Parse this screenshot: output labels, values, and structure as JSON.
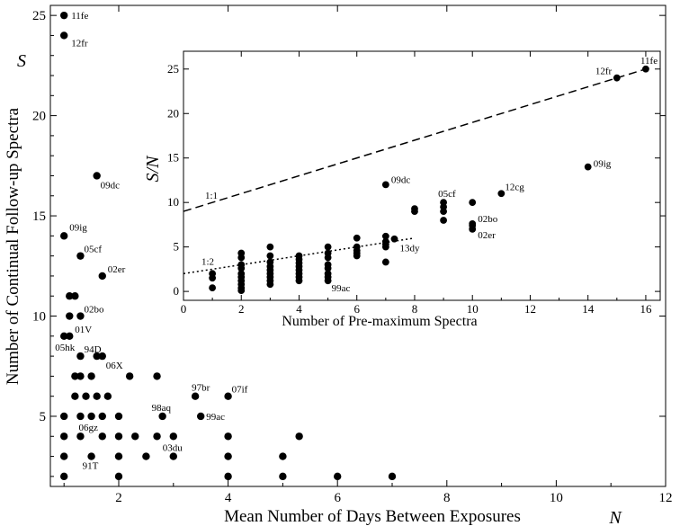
{
  "chart_data": [
    {
      "type": "scatter",
      "xlabel": "Mean Number of Days Between Exposures",
      "ylabel": "Number of Continual Follow-up Spectra",
      "xlim": [
        0.75,
        12
      ],
      "ylim": [
        1.5,
        25.5
      ],
      "xticks": [
        2,
        4,
        6,
        8,
        10,
        12
      ],
      "yticks": [
        5,
        10,
        15,
        20,
        25
      ],
      "axis_symbols": {
        "y": "S",
        "x": "N"
      },
      "points": [
        {
          "x": 1.0,
          "y": 25,
          "label": "11fe"
        },
        {
          "x": 1.0,
          "y": 24,
          "label": "12fr"
        },
        {
          "x": 1.6,
          "y": 17,
          "label": "09dc"
        },
        {
          "x": 1.0,
          "y": 14,
          "label": "09ig"
        },
        {
          "x": 1.3,
          "y": 13,
          "label": "05cf"
        },
        {
          "x": 1.7,
          "y": 12,
          "label": "02er"
        },
        {
          "x": 1.1,
          "y": 11,
          "label": ""
        },
        {
          "x": 1.2,
          "y": 11,
          "label": ""
        },
        {
          "x": 1.1,
          "y": 10,
          "label": ""
        },
        {
          "x": 1.3,
          "y": 10,
          "label": "02bo"
        },
        {
          "x": 1.0,
          "y": 9,
          "label": "05hk"
        },
        {
          "x": 1.1,
          "y": 9,
          "label": "01V"
        },
        {
          "x": 1.3,
          "y": 8,
          "label": ""
        },
        {
          "x": 1.6,
          "y": 8,
          "label": "94D"
        },
        {
          "x": 1.7,
          "y": 8,
          "label": "06X"
        },
        {
          "x": 1.2,
          "y": 7,
          "label": ""
        },
        {
          "x": 1.3,
          "y": 7,
          "label": ""
        },
        {
          "x": 1.5,
          "y": 7,
          "label": ""
        },
        {
          "x": 2.2,
          "y": 7,
          "label": ""
        },
        {
          "x": 2.7,
          "y": 7,
          "label": ""
        },
        {
          "x": 1.2,
          "y": 6,
          "label": ""
        },
        {
          "x": 1.4,
          "y": 6,
          "label": ""
        },
        {
          "x": 1.6,
          "y": 6,
          "label": ""
        },
        {
          "x": 1.8,
          "y": 6,
          "label": ""
        },
        {
          "x": 3.4,
          "y": 6,
          "label": "97br"
        },
        {
          "x": 4.0,
          "y": 6,
          "label": "07if"
        },
        {
          "x": 1.0,
          "y": 5,
          "label": ""
        },
        {
          "x": 1.3,
          "y": 5,
          "label": "06gz"
        },
        {
          "x": 1.5,
          "y": 5,
          "label": ""
        },
        {
          "x": 1.7,
          "y": 5,
          "label": ""
        },
        {
          "x": 2.0,
          "y": 5,
          "label": ""
        },
        {
          "x": 2.8,
          "y": 5,
          "label": "98aq"
        },
        {
          "x": 3.5,
          "y": 5,
          "label": "99ac"
        },
        {
          "x": 1.0,
          "y": 4,
          "label": ""
        },
        {
          "x": 1.3,
          "y": 4,
          "label": ""
        },
        {
          "x": 1.7,
          "y": 4,
          "label": ""
        },
        {
          "x": 2.0,
          "y": 4,
          "label": ""
        },
        {
          "x": 2.3,
          "y": 4,
          "label": ""
        },
        {
          "x": 2.7,
          "y": 4,
          "label": ""
        },
        {
          "x": 3.0,
          "y": 4,
          "label": "03du"
        },
        {
          "x": 4.0,
          "y": 4,
          "label": ""
        },
        {
          "x": 5.3,
          "y": 4,
          "label": ""
        },
        {
          "x": 1.0,
          "y": 3,
          "label": ""
        },
        {
          "x": 1.5,
          "y": 3,
          "label": "91T"
        },
        {
          "x": 2.0,
          "y": 3,
          "label": ""
        },
        {
          "x": 2.5,
          "y": 3,
          "label": ""
        },
        {
          "x": 3.0,
          "y": 3,
          "label": ""
        },
        {
          "x": 4.0,
          "y": 3,
          "label": ""
        },
        {
          "x": 5.0,
          "y": 3,
          "label": ""
        },
        {
          "x": 1.0,
          "y": 2,
          "label": ""
        },
        {
          "x": 2.0,
          "y": 2,
          "label": ""
        },
        {
          "x": 4.0,
          "y": 2,
          "label": ""
        },
        {
          "x": 5.0,
          "y": 2,
          "label": ""
        },
        {
          "x": 6.0,
          "y": 2,
          "label": ""
        },
        {
          "x": 7.0,
          "y": 2,
          "label": ""
        }
      ]
    },
    {
      "type": "scatter",
      "xlabel": "Number of Pre-maximum Spectra",
      "ylabel": "S/N",
      "xlim": [
        0,
        16.5
      ],
      "ylim": [
        -1,
        27
      ],
      "xticks": [
        0,
        2,
        4,
        6,
        8,
        10,
        12,
        14,
        16
      ],
      "yticks": [
        0,
        5,
        10,
        15,
        20,
        25
      ],
      "lines": [
        {
          "name": "1:1",
          "style": "dashed",
          "x": [
            0,
            16
          ],
          "y": [
            9,
            25
          ]
        },
        {
          "name": "1:2",
          "style": "dotted",
          "x": [
            0,
            8
          ],
          "y": [
            2,
            6
          ]
        }
      ],
      "points": [
        {
          "x": 16,
          "y": 25,
          "label": "11fe"
        },
        {
          "x": 15,
          "y": 24,
          "label": "12fr"
        },
        {
          "x": 14,
          "y": 14,
          "label": "09ig"
        },
        {
          "x": 11,
          "y": 11,
          "label": "12cg"
        },
        {
          "x": 7,
          "y": 12,
          "label": "09dc"
        },
        {
          "x": 9,
          "y": 10,
          "label": "05cf"
        },
        {
          "x": 9,
          "y": 9.5,
          "label": ""
        },
        {
          "x": 9,
          "y": 9,
          "label": ""
        },
        {
          "x": 9,
          "y": 8,
          "label": ""
        },
        {
          "x": 10,
          "y": 10,
          "label": ""
        },
        {
          "x": 10,
          "y": 7.6,
          "label": "02bo"
        },
        {
          "x": 10,
          "y": 7.4,
          "label": ""
        },
        {
          "x": 10,
          "y": 7.0,
          "label": "02er"
        },
        {
          "x": 8,
          "y": 9.3,
          "label": ""
        },
        {
          "x": 8,
          "y": 9.0,
          "label": ""
        },
        {
          "x": 7.3,
          "y": 5.9,
          "label": "13dy"
        },
        {
          "x": 7,
          "y": 6.2,
          "label": ""
        },
        {
          "x": 7,
          "y": 5.6,
          "label": ""
        },
        {
          "x": 7,
          "y": 5.3,
          "label": ""
        },
        {
          "x": 7,
          "y": 5.0,
          "label": ""
        },
        {
          "x": 7,
          "y": 3.3,
          "label": ""
        },
        {
          "x": 6,
          "y": 6.0,
          "label": ""
        },
        {
          "x": 6,
          "y": 5.0,
          "label": ""
        },
        {
          "x": 6,
          "y": 4.6,
          "label": ""
        },
        {
          "x": 6,
          "y": 4.3,
          "label": ""
        },
        {
          "x": 6,
          "y": 4.0,
          "label": ""
        },
        {
          "x": 5,
          "y": 5.0,
          "label": ""
        },
        {
          "x": 5,
          "y": 4.3,
          "label": ""
        },
        {
          "x": 5,
          "y": 3.8,
          "label": ""
        },
        {
          "x": 5,
          "y": 3.0,
          "label": ""
        },
        {
          "x": 5,
          "y": 2.6,
          "label": ""
        },
        {
          "x": 5,
          "y": 2.0,
          "label": ""
        },
        {
          "x": 5,
          "y": 1.6,
          "label": ""
        },
        {
          "x": 5,
          "y": 1.2,
          "label": "99ac"
        },
        {
          "x": 4,
          "y": 4.0,
          "label": ""
        },
        {
          "x": 4,
          "y": 3.6,
          "label": ""
        },
        {
          "x": 4,
          "y": 3.2,
          "label": ""
        },
        {
          "x": 4,
          "y": 2.8,
          "label": ""
        },
        {
          "x": 4,
          "y": 2.4,
          "label": ""
        },
        {
          "x": 4,
          "y": 2.0,
          "label": ""
        },
        {
          "x": 4,
          "y": 1.6,
          "label": ""
        },
        {
          "x": 4,
          "y": 1.2,
          "label": ""
        },
        {
          "x": 3,
          "y": 5.0,
          "label": ""
        },
        {
          "x": 3,
          "y": 4.0,
          "label": ""
        },
        {
          "x": 3,
          "y": 3.3,
          "label": ""
        },
        {
          "x": 3,
          "y": 2.8,
          "label": ""
        },
        {
          "x": 3,
          "y": 2.4,
          "label": ""
        },
        {
          "x": 3,
          "y": 2.0,
          "label": ""
        },
        {
          "x": 3,
          "y": 1.6,
          "label": ""
        },
        {
          "x": 3,
          "y": 1.2,
          "label": ""
        },
        {
          "x": 3,
          "y": 0.8,
          "label": ""
        },
        {
          "x": 2,
          "y": 4.3,
          "label": ""
        },
        {
          "x": 2,
          "y": 3.8,
          "label": ""
        },
        {
          "x": 2,
          "y": 3.0,
          "label": ""
        },
        {
          "x": 2,
          "y": 2.6,
          "label": ""
        },
        {
          "x": 2,
          "y": 2.0,
          "label": ""
        },
        {
          "x": 2,
          "y": 1.6,
          "label": ""
        },
        {
          "x": 2,
          "y": 1.2,
          "label": ""
        },
        {
          "x": 2,
          "y": 0.8,
          "label": ""
        },
        {
          "x": 2,
          "y": 0.4,
          "label": ""
        },
        {
          "x": 2,
          "y": 0.1,
          "label": ""
        },
        {
          "x": 1,
          "y": 2.0,
          "label": ""
        },
        {
          "x": 1,
          "y": 1.5,
          "label": ""
        },
        {
          "x": 1,
          "y": 0.4,
          "label": ""
        }
      ]
    }
  ]
}
